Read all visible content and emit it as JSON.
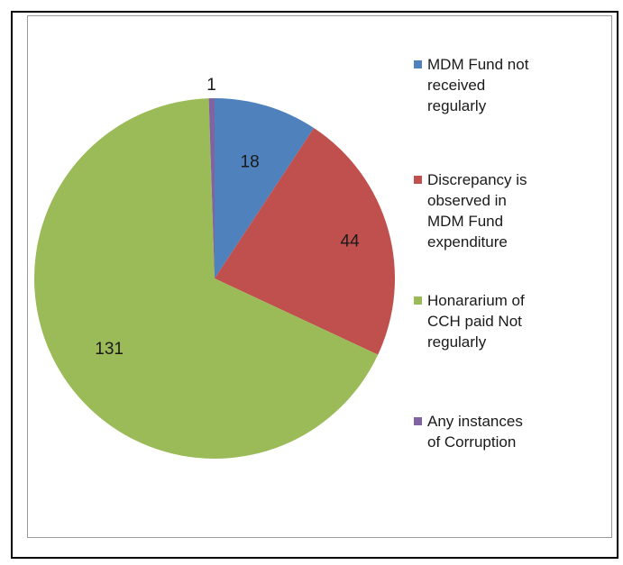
{
  "chart_data": {
    "type": "pie",
    "title": "",
    "slices": [
      {
        "label": "MDM Fund not received regularly",
        "value": 18,
        "color": "#4f81bd"
      },
      {
        "label": " Discrepancy is observed in MDM Fund expenditure",
        "value": 44,
        "color": "#c0504d"
      },
      {
        "label": "Honararium of CCH paid Not regularly",
        "value": 131,
        "color": "#9bbb59"
      },
      {
        "label": "Any instances of Corruption",
        "value": 1,
        "color": "#8064a2"
      }
    ],
    "legend_position": "right",
    "legend_labels_wrapped": [
      "MDM Fund not\nreceived\nregularly",
      " Discrepancy is\nobserved in\nMDM Fund\nexpenditure",
      "Honararium of\nCCH paid Not\nregularly",
      "Any instances\nof Corruption"
    ]
  }
}
